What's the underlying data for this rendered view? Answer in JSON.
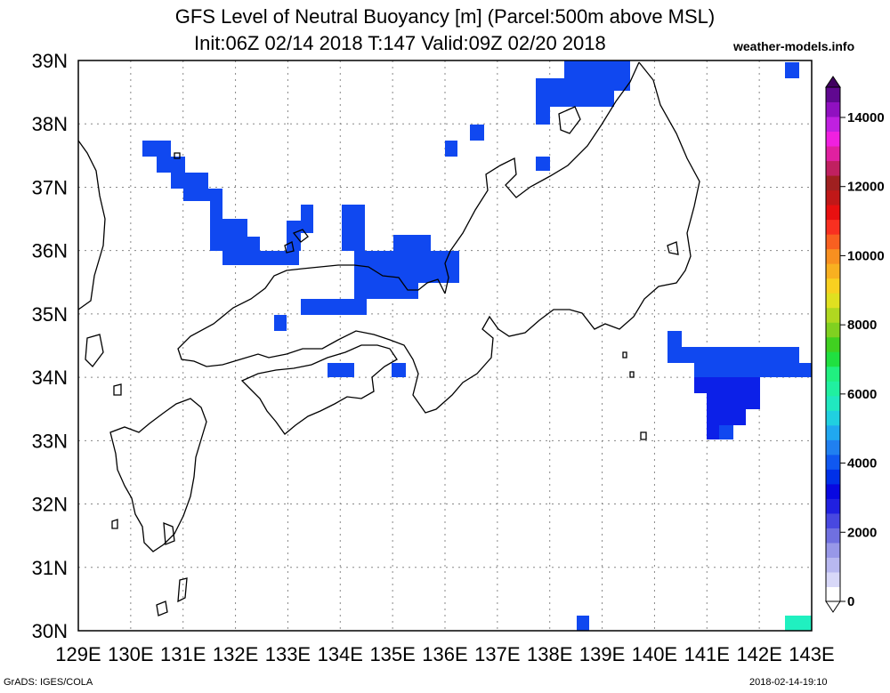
{
  "header": {
    "title": "GFS Level of Neutral Buoyancy [m] (Parcel:500m above MSL)",
    "subtitle": "Init:06Z 02/14 2018 T:147 Valid:09Z 02/20 2018",
    "brand": "weather-models.info"
  },
  "footer": {
    "left": "GrADS: IGES/COLA",
    "right": "2018-02-14-19:10"
  },
  "map": {
    "lon_range": [
      129,
      143
    ],
    "lat_range": [
      30,
      39
    ],
    "lon_labels": [
      "129E",
      "130E",
      "131E",
      "132E",
      "133E",
      "134E",
      "135E",
      "136E",
      "137E",
      "138E",
      "139E",
      "140E",
      "141E",
      "142E",
      "143E"
    ],
    "lat_labels": [
      "30N",
      "31N",
      "32N",
      "33N",
      "34N",
      "35N",
      "36N",
      "37N",
      "38N",
      "39N"
    ],
    "coastline_color": "#000000",
    "grid": "dotted"
  },
  "colorbar": {
    "labels": [
      "0",
      "2000",
      "4000",
      "6000",
      "8000",
      "10000",
      "12000",
      "14000"
    ],
    "colors": [
      "#ffffff",
      "#d8d8f8",
      "#b8b8f0",
      "#9898e8",
      "#7070e0",
      "#4848e0",
      "#2020e0",
      "#0808e0",
      "#0030e8",
      "#1058f0",
      "#2080f0",
      "#20a8f0",
      "#20d0e0",
      "#20e8c0",
      "#20f0a0",
      "#20f080",
      "#20e040",
      "#40d020",
      "#80d020",
      "#b0d820",
      "#e0e020",
      "#f8d020",
      "#f8b020",
      "#f89020",
      "#f86020",
      "#f83020",
      "#e81010",
      "#c01818",
      "#a02020",
      "#c02060",
      "#e020a0",
      "#f020e0",
      "#c020e0",
      "#9010c0",
      "#600890"
    ]
  },
  "cells": {
    "color_main": "#1048f0",
    "color_deep": "#0c20e8",
    "color_cyan": "#20f0c0"
  }
}
